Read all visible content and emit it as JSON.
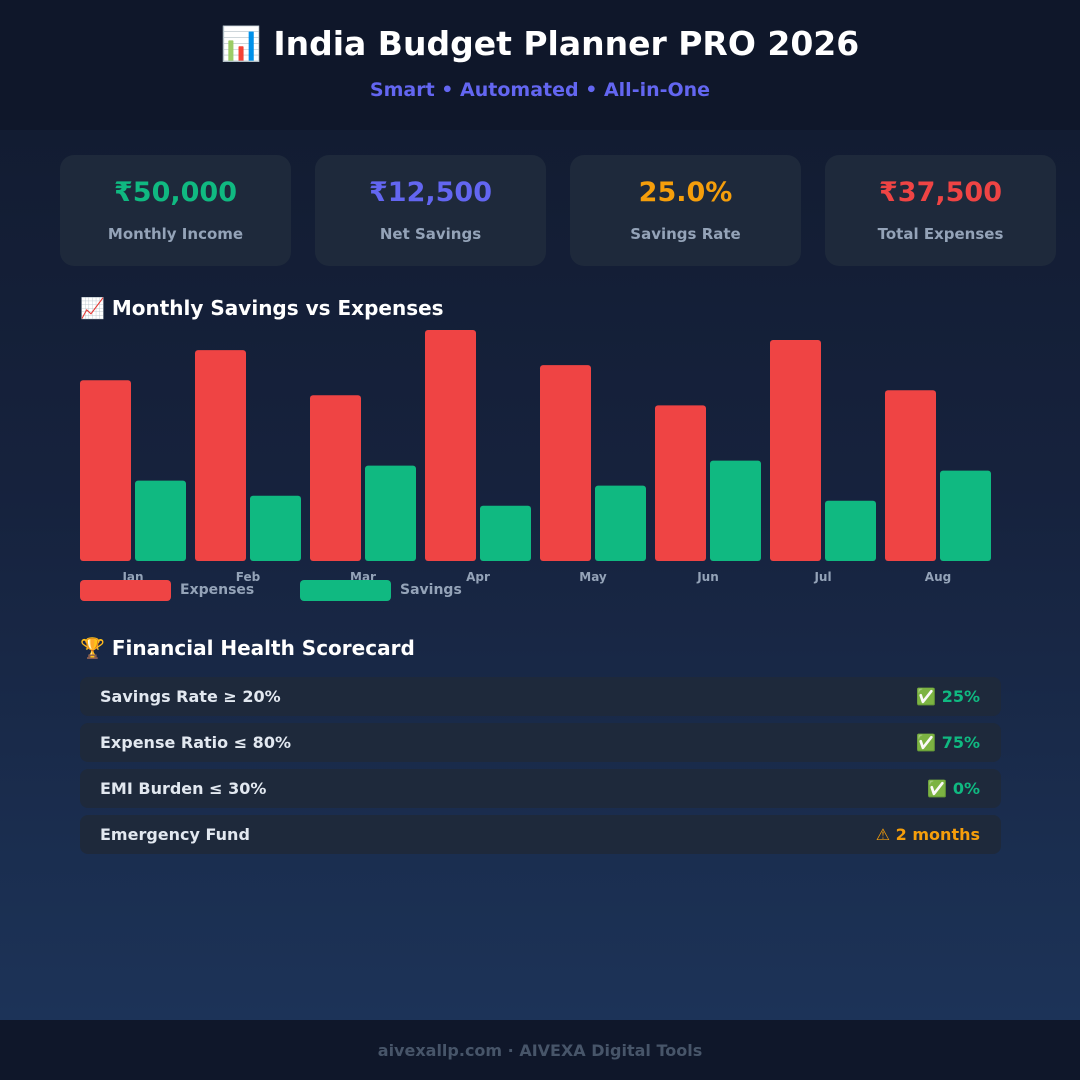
{
  "header": {
    "title": "📊 India Budget Planner PRO 2026",
    "subtitle": "Smart • Automated • All-in-One"
  },
  "stats": [
    {
      "value": "₹50,000",
      "label": "Monthly Income",
      "color": "#10b981"
    },
    {
      "value": "₹12,500",
      "label": "Net Savings",
      "color": "#6366f1"
    },
    {
      "value": "25.0%",
      "label": "Savings Rate",
      "color": "#f59e0b"
    },
    {
      "value": "₹37,500",
      "label": "Total Expenses",
      "color": "#ef4444"
    }
  ],
  "chart_section": {
    "title": "📈 Monthly Savings vs Expenses"
  },
  "chart_data": {
    "type": "bar",
    "categories": [
      "Jan",
      "Feb",
      "Mar",
      "Apr",
      "May",
      "Jun",
      "Jul",
      "Aug"
    ],
    "series": [
      {
        "name": "Expenses",
        "color": "#ef4444",
        "values": [
          36,
          42,
          33,
          46,
          39,
          31,
          44,
          34
        ]
      },
      {
        "name": "Savings",
        "color": "#10b981",
        "values": [
          16,
          13,
          19,
          11,
          15,
          20,
          12,
          18
        ]
      }
    ],
    "ylim": [
      0,
      46
    ],
    "legend": "bottom-left"
  },
  "scorecard": {
    "title": "🏆 Financial Health Scorecard",
    "rows": [
      {
        "label": "Savings Rate ≥ 20%",
        "value": "✅ 25%",
        "color": "#10b981"
      },
      {
        "label": "Expense Ratio ≤ 80%",
        "value": "✅ 75%",
        "color": "#10b981"
      },
      {
        "label": "EMI Burden ≤ 30%",
        "value": "✅ 0%",
        "color": "#10b981"
      },
      {
        "label": "Emergency Fund",
        "value": "⚠ 2 months",
        "color": "#f59e0b"
      }
    ]
  },
  "footer": {
    "text": "aivexallp.com · AIVEXA Digital Tools"
  }
}
